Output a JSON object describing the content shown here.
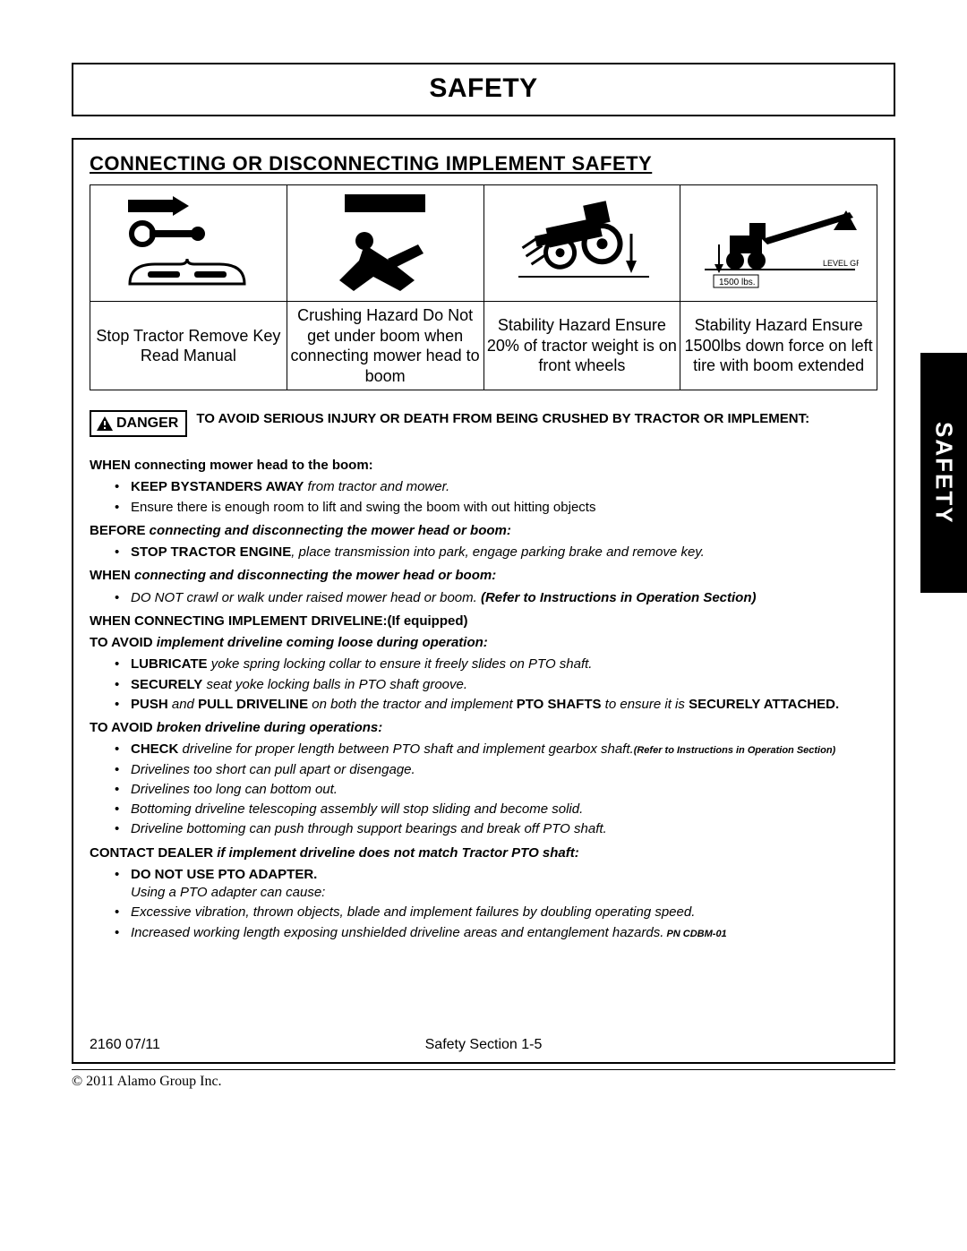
{
  "page": {
    "title": "SAFETY",
    "section_title": "CONNECTING OR DISCONNECTING IMPLEMENT SAFETY",
    "side_tab": "SAFETY",
    "footer_left": "2160  07/11",
    "footer_center": "Safety Section 1-5",
    "copyright": "© 2011 Alamo Group Inc."
  },
  "hazard_table": {
    "captions": [
      "Stop Tractor Remove Key Read Manual",
      "Crushing Hazard Do Not get under boom when connecting mower head to boom",
      "Stability Hazard Ensure 20% of tractor weight is on front wheels",
      "Stability Hazard Ensure 1500lbs down force on left tire with boom extended"
    ],
    "cell4_labels": {
      "level": "LEVEL GROUND",
      "weight": "1500 lbs."
    }
  },
  "danger": {
    "label": "DANGER",
    "text": "TO AVOID SERIOUS INJURY OR DEATH FROM BEING CRUSHED BY TRACTOR OR IMPLEMENT:"
  },
  "sections": {
    "s1_heading": "WHEN connecting mower head to the boom:",
    "s1_items": [
      {
        "pre": "KEEP BYSTANDERS AWAY",
        "rest": " from tractor and mower."
      },
      {
        "plain": "Ensure there is enough room to lift and swing the boom with out hitting objects"
      }
    ],
    "s2_heading_pre": "BEFORE",
    "s2_heading_rest": " connecting and disconnecting the mower head or boom:",
    "s2_items": [
      {
        "pre": "STOP TRACTOR ENGINE",
        "rest": ", place transmission into park, engage parking brake and remove key."
      }
    ],
    "s3_heading_pre": "WHEN",
    "s3_heading_rest": " connecting and disconnecting the mower head or boom:",
    "s3_items": [
      {
        "rest": "DO NOT crawl or walk under raised mower head or boom. ",
        "bold_tail": "(Refer to Instructions in Operation Section)"
      }
    ],
    "s4_heading": "WHEN CONNECTING IMPLEMENT DRIVELINE:(If equipped)",
    "s5_heading_pre": "TO AVOID",
    "s5_heading_rest": " implement driveline coming loose during operation:",
    "s5_items": [
      {
        "pre": "LUBRICATE ",
        "rest": " yoke spring locking collar to ensure it freely slides on PTO shaft."
      },
      {
        "pre": "SECURELY",
        "rest": " seat yoke locking balls in PTO shaft groove."
      },
      {
        "html": "<span class='b'>PUSH</span><span class='i'> and </span><span class='b'>PULL DRIVELINE</span><span class='i'> on both the tractor and implement </span><span class='b'>PTO SHAFTS</span><span class='i'> to ensure it is </span><span class='b'>SECURELY ATTACHED.</span>"
      }
    ],
    "s6_heading_pre": "TO AVOID",
    "s6_heading_rest": " broken driveline during operations:",
    "s6_items": [
      {
        "pre": "CHECK",
        "rest": " driveline for proper length between PTO shaft and implement gearbox shaft.",
        "small": "(Refer to Instructions in Operation Section)"
      },
      {
        "italic": "Drivelines too short can pull apart or disengage."
      },
      {
        "italic": "Drivelines too long can bottom out."
      },
      {
        "italic": "Bottoming driveline telescoping assembly will stop sliding and become solid."
      },
      {
        "italic": "Driveline bottoming can push through support bearings and break off PTO shaft."
      }
    ],
    "s7_heading_pre": "CONTACT DEALER",
    "s7_heading_rest": " if implement driveline does not match Tractor PTO shaft:",
    "s7_items": [
      {
        "bold": "DO NOT USE PTO ADAPTER.",
        "sub_italic": "Using a PTO adapter can cause:"
      },
      {
        "italic": "Excessive vibration, thrown objects, blade and implement failures by doubling operating speed."
      },
      {
        "italic": "Increased working length exposing unshielded driveline areas and entanglement hazards.",
        "pn": "  PN CDBM-01"
      }
    ]
  },
  "colors": {
    "black": "#000000",
    "white": "#ffffff"
  }
}
